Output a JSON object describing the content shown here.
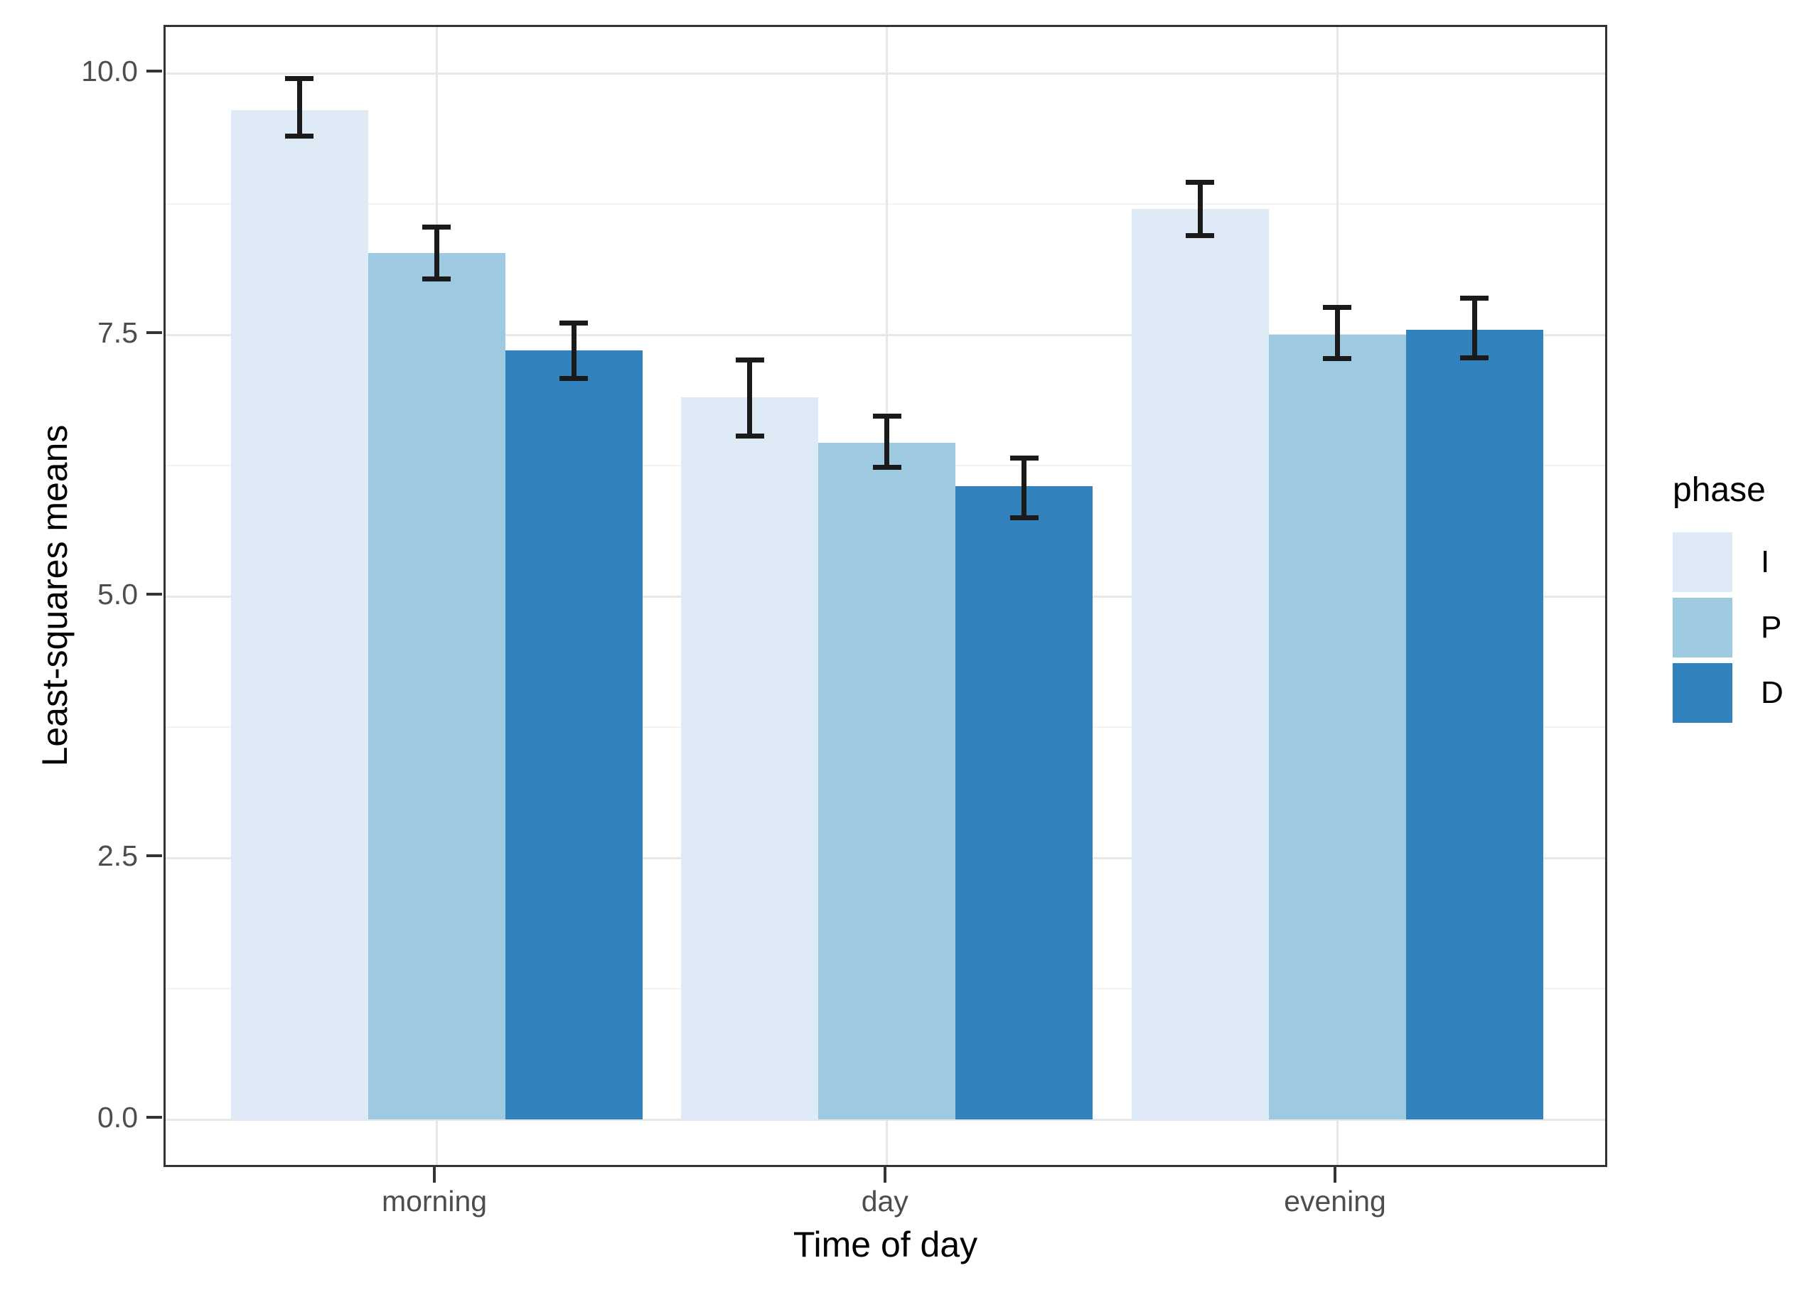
{
  "figure": {
    "x_axis_title": "Time of day",
    "y_axis_title": "Least-squares means"
  },
  "legend": {
    "title": "phase",
    "entries": [
      {
        "label": "I",
        "color": "#deebf7"
      },
      {
        "label": "P",
        "color": "#9ecae1"
      },
      {
        "label": "D",
        "color": "#3182bd"
      }
    ]
  },
  "chart_data": {
    "type": "bar",
    "title": "",
    "xlabel": "Time of day",
    "ylabel": "Least-squares means",
    "categories": [
      "morning",
      "day",
      "evening"
    ],
    "series": [
      {
        "name": "I",
        "color": "#deebf7",
        "values": [
          9.65,
          6.9,
          8.7
        ],
        "ci_low": [
          9.4,
          6.53,
          8.45
        ],
        "ci_high": [
          9.95,
          7.26,
          8.96
        ]
      },
      {
        "name": "P",
        "color": "#9ecae1",
        "values": [
          8.28,
          6.47,
          7.5
        ],
        "ci_low": [
          8.03,
          6.23,
          7.27
        ],
        "ci_high": [
          8.53,
          6.72,
          7.76
        ]
      },
      {
        "name": "D",
        "color": "#3182bd",
        "values": [
          7.35,
          6.05,
          7.55
        ],
        "ci_low": [
          7.08,
          5.75,
          7.28
        ],
        "ci_high": [
          7.61,
          6.32,
          7.85
        ]
      }
    ],
    "y_ticks": [
      {
        "label": "0.0",
        "value": 0
      },
      {
        "label": "2.5",
        "value": 2.5
      },
      {
        "label": "5.0",
        "value": 5
      },
      {
        "label": "7.5",
        "value": 7.5
      },
      {
        "label": "10.0",
        "value": 10
      }
    ],
    "y_minor": [
      1.25,
      3.75,
      6.25,
      8.75
    ],
    "ylim": [
      -0.48,
      10.48
    ],
    "grid": true,
    "error_bars": true,
    "legend_position": "right"
  }
}
